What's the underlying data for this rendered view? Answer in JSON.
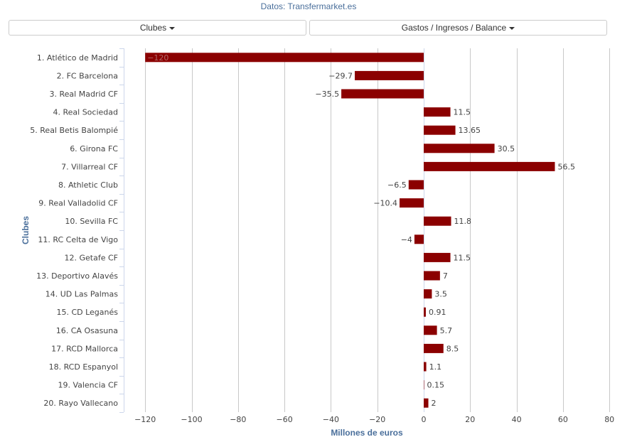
{
  "header": {
    "source": "Datos: Transfermarket.es"
  },
  "controls": {
    "clubs_dropdown": "Clubes",
    "metric_dropdown": "Gastos / Ingresos / Balance"
  },
  "colors": {
    "bar": "#8b0000",
    "axis_title": "#4a6f9b",
    "grid": "#c8c8c8",
    "axis_line": "#ccd6eb"
  },
  "chart_data": {
    "type": "bar",
    "orientation": "horizontal",
    "title": "",
    "xlabel": "Millones de euros",
    "ylabel": "Clubes",
    "xlim": [
      -130,
      80
    ],
    "xticks": [
      -120,
      -100,
      -80,
      -60,
      -40,
      -20,
      0,
      20,
      40,
      60,
      80
    ],
    "xtick_labels": [
      "−120",
      "−100",
      "−80",
      "−60",
      "−40",
      "−20",
      "0",
      "20",
      "40",
      "60",
      "80"
    ],
    "grid": true,
    "categories": [
      "1. Atlético de Madrid",
      "2. FC Barcelona",
      "3. Real Madrid CF",
      "4. Real Sociedad",
      "5. Real Betis Balompié",
      "6. Girona FC",
      "7. Villarreal CF",
      "8. Athletic Club",
      "9. Real Valladolid CF",
      "10. Sevilla FC",
      "11. RC Celta de Vigo",
      "12. Getafe CF",
      "13. Deportivo Alavés",
      "14. UD Las Palmas",
      "15. CD Leganés",
      "16. CA Osasuna",
      "17. RCD Mallorca",
      "18. RCD Espanyol",
      "19. Valencia CF",
      "20. Rayo Vallecano"
    ],
    "values": [
      -120,
      -29.7,
      -35.5,
      11.5,
      13.65,
      30.5,
      56.5,
      -6.5,
      -10.4,
      11.8,
      -4,
      11.5,
      7,
      3.5,
      0.91,
      5.7,
      8.5,
      1.1,
      0.15,
      2
    ],
    "value_labels": [
      "−120",
      "−29.7",
      "−35.5",
      "11.5",
      "13.65",
      "30.5",
      "56.5",
      "−6.5",
      "−10.4",
      "11.8",
      "−4",
      "11.5",
      "7",
      "3.5",
      "0.91",
      "5.7",
      "8.5",
      "1.1",
      "0.15",
      "2"
    ]
  }
}
